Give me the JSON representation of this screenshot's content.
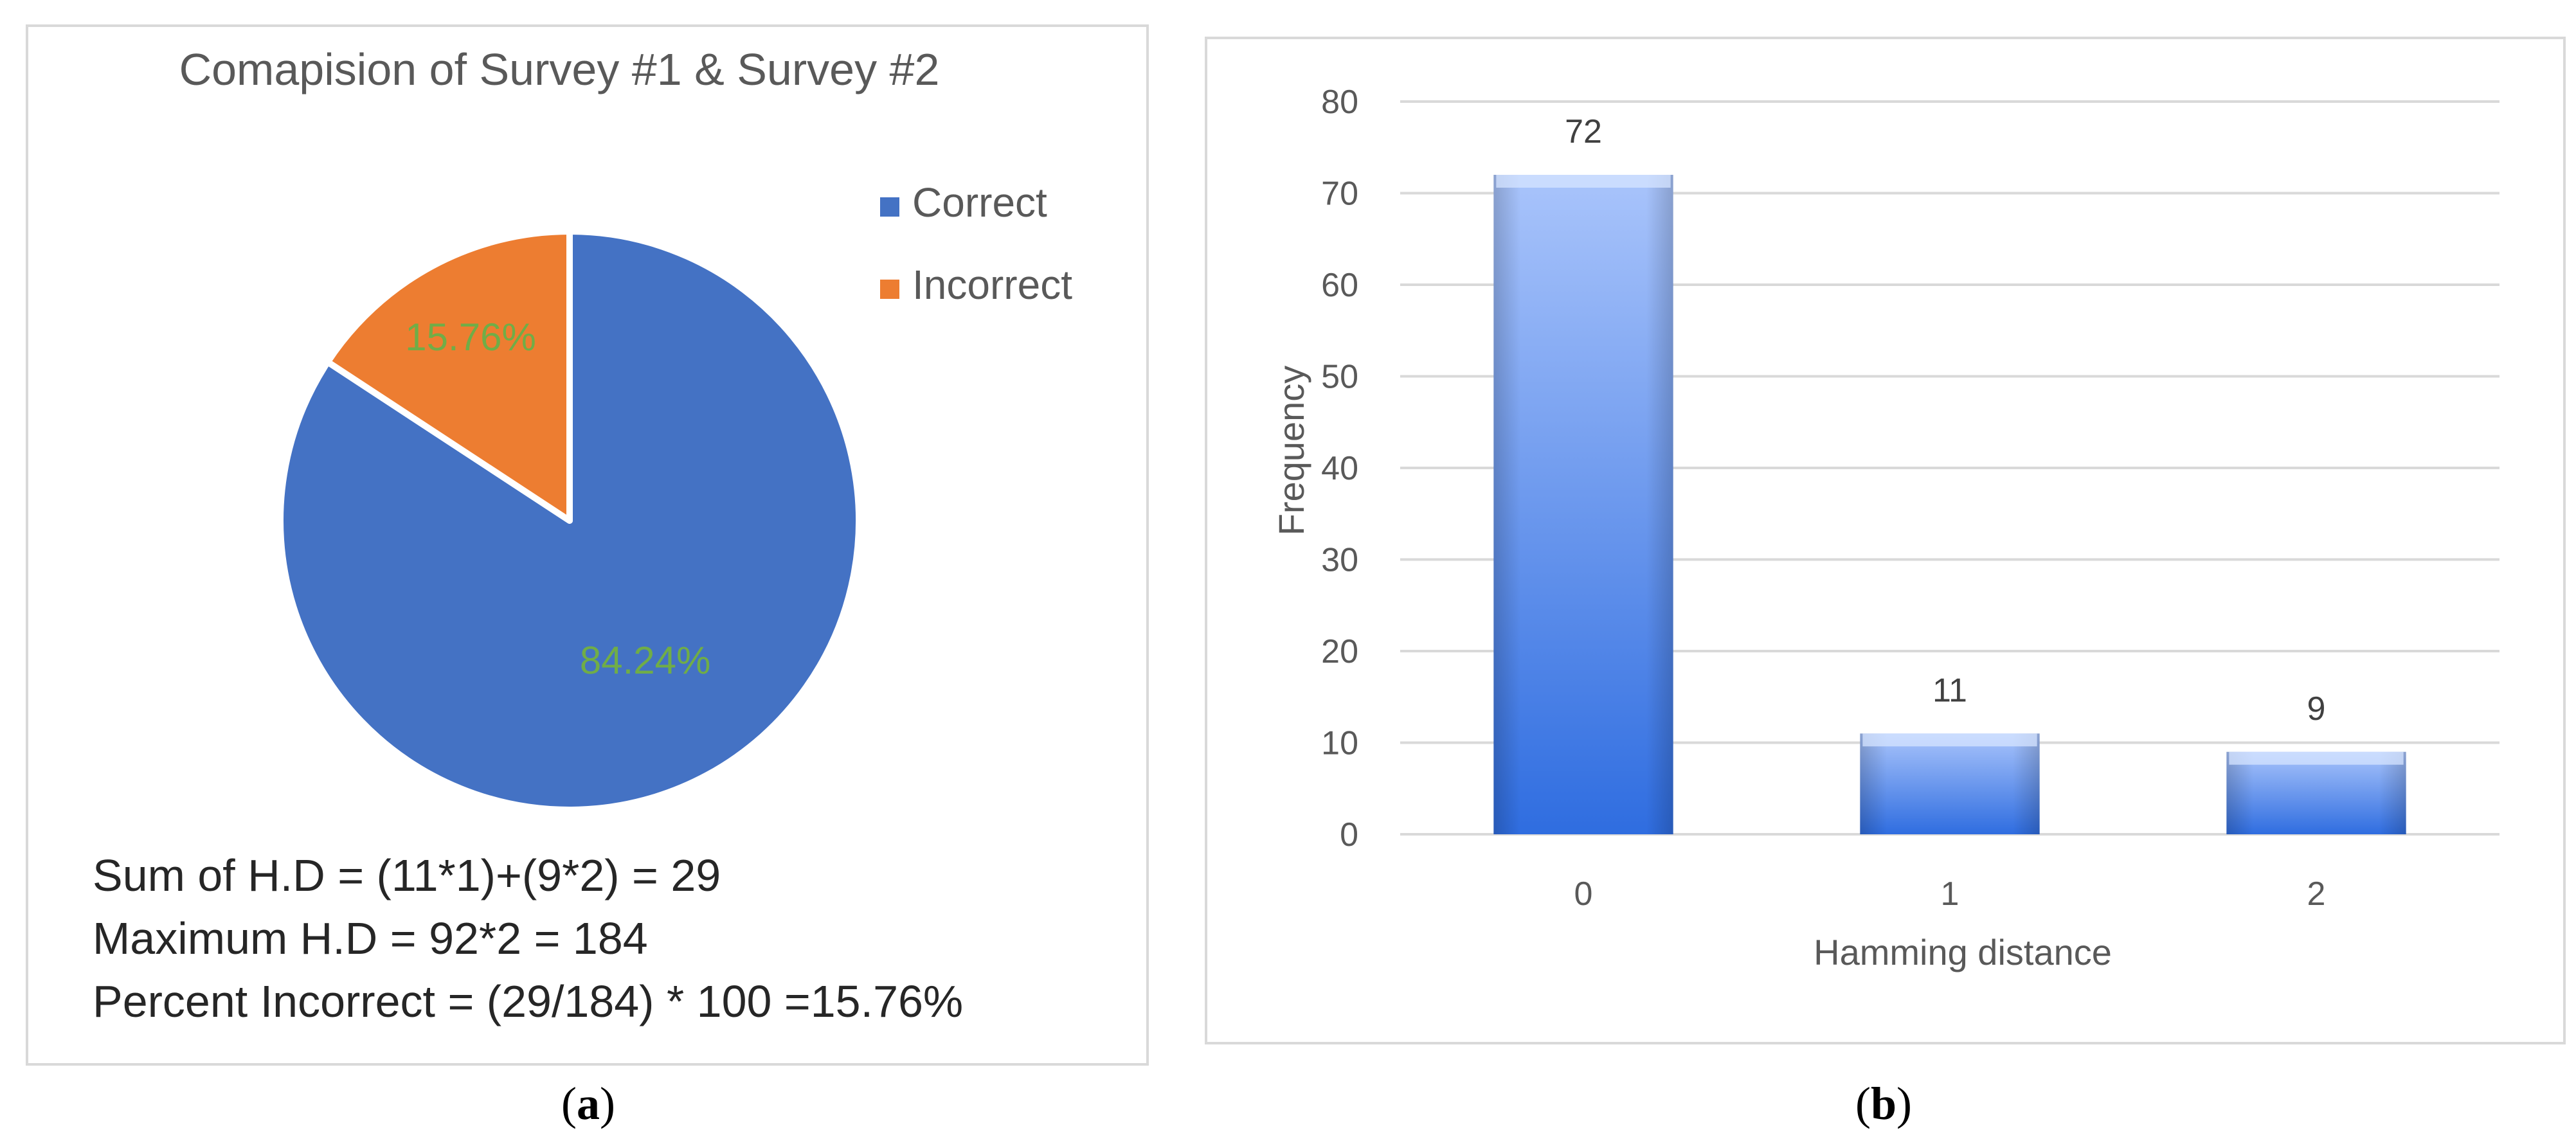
{
  "panel_a": {
    "caption_letter": "a",
    "notes": [
      "Sum of H.D = (11*1)+(9*2) = 29",
      "Maximum H.D = 92*2 = 184",
      "Percent Incorrect = (29/184) * 100 =15.76%"
    ]
  },
  "panel_b": {
    "caption_letter": "b"
  },
  "colors": {
    "correct": "#4472c4",
    "incorrect": "#ed7d31",
    "pie_label": "#70ad47",
    "bar_top": "#a9c4fb",
    "bar_bottom": "#2f6de0",
    "grid": "#d9d9d9"
  },
  "chart_data": [
    {
      "type": "pie",
      "title": "Comapision of Survey #1 & Survey #2",
      "categories": [
        "Correct",
        "Incorrect"
      ],
      "values": [
        84.24,
        15.76
      ],
      "data_labels": [
        "84.24%",
        "15.76%"
      ],
      "legend_position": "top-right"
    },
    {
      "type": "bar",
      "title": "",
      "categories": [
        "0",
        "1",
        "2"
      ],
      "values": [
        72,
        11,
        9
      ],
      "data_labels": [
        "72",
        "11",
        "9"
      ],
      "xlabel": "Hamming distance",
      "ylabel": "Frequency",
      "ylim": [
        0,
        80
      ],
      "yticks": [
        "0",
        "10",
        "20",
        "30",
        "40",
        "50",
        "60",
        "70",
        "80"
      ],
      "grid": true
    }
  ]
}
